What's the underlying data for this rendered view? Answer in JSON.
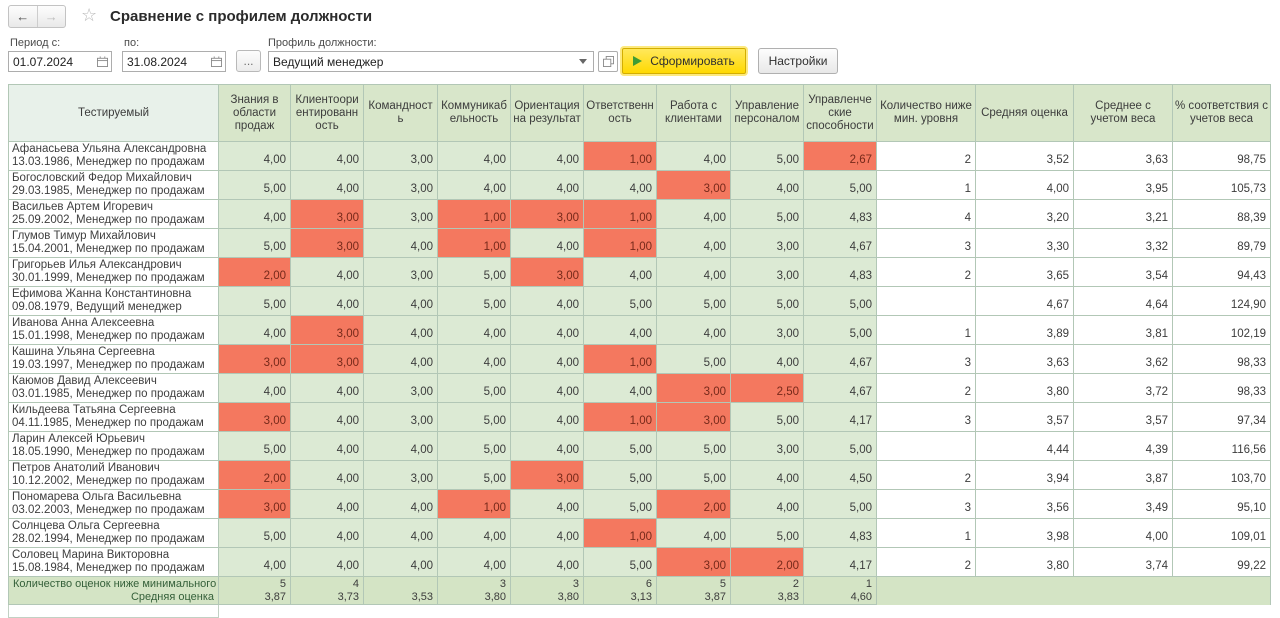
{
  "header": {
    "back_icon": "←",
    "forward_icon": "→",
    "star_icon": "☆",
    "title": "Сравнение с профилем должности"
  },
  "filters": {
    "period_from_label": "Период с:",
    "period_from_value": "01.07.2024",
    "period_to_label": "по:",
    "period_to_value": "31.08.2024",
    "more_button_label": "...",
    "profile_label": "Профиль должности:",
    "profile_value": "Ведущий менеджер",
    "generate_button_label": "Сформировать",
    "settings_button_label": "Настройки"
  },
  "colors": {
    "low_cell": "#f4785f",
    "cell_green": "#dcead4",
    "header_green": "#d8e6ca",
    "summary_green": "#d4e4c5",
    "accent_yellow": "#ffd900"
  },
  "table": {
    "name_header": "Тестируемый",
    "columns": [
      "Знания в области продаж",
      "Клиентоориентированность",
      "Командность",
      "Коммуникабельность",
      "Ориентация на результат",
      "Ответственность",
      "Работа с клиентами",
      "Управление персоналом",
      "Управленческие способности",
      "Количество ниже мин. уровня",
      "Средняя оценка",
      "Среднее с учетом веса",
      "% соответствия с учетов веса"
    ],
    "rows": [
      {
        "name": "Афанасьева Ульяна Александровна",
        "info": "13.03.1986, Менеджер по продажам",
        "scores": [
          "4,00",
          "4,00",
          "3,00",
          "4,00",
          "4,00",
          "1,00",
          "4,00",
          "5,00",
          "2,67"
        ],
        "low": [
          5,
          8
        ],
        "stats": [
          "2",
          "3,52",
          "3,63",
          "98,75"
        ]
      },
      {
        "name": "Богословский Федор Михайлович",
        "info": "29.03.1985, Менеджер по продажам",
        "scores": [
          "5,00",
          "4,00",
          "3,00",
          "4,00",
          "4,00",
          "4,00",
          "3,00",
          "4,00",
          "5,00"
        ],
        "low": [
          6
        ],
        "stats": [
          "1",
          "4,00",
          "3,95",
          "105,73"
        ]
      },
      {
        "name": "Васильев Артем Игоревич",
        "info": "25.09.2002, Менеджер по продажам",
        "scores": [
          "4,00",
          "3,00",
          "3,00",
          "1,00",
          "3,00",
          "1,00",
          "4,00",
          "5,00",
          "4,83"
        ],
        "low": [
          1,
          3,
          4,
          5
        ],
        "stats": [
          "4",
          "3,20",
          "3,21",
          "88,39"
        ]
      },
      {
        "name": "Глумов Тимур Михайлович",
        "info": "15.04.2001, Менеджер по продажам",
        "scores": [
          "5,00",
          "3,00",
          "4,00",
          "1,00",
          "4,00",
          "1,00",
          "4,00",
          "3,00",
          "4,67"
        ],
        "low": [
          1,
          3,
          5
        ],
        "stats": [
          "3",
          "3,30",
          "3,32",
          "89,79"
        ]
      },
      {
        "name": "Григорьев Илья Александрович",
        "info": "30.01.1999, Менеджер по продажам",
        "scores": [
          "2,00",
          "4,00",
          "3,00",
          "5,00",
          "3,00",
          "4,00",
          "4,00",
          "3,00",
          "4,83"
        ],
        "low": [
          0,
          4
        ],
        "stats": [
          "2",
          "3,65",
          "3,54",
          "94,43"
        ]
      },
      {
        "name": "Ефимова Жанна Константиновна",
        "info": "09.08.1979, Ведущий менеджер",
        "scores": [
          "5,00",
          "4,00",
          "4,00",
          "5,00",
          "4,00",
          "5,00",
          "5,00",
          "5,00",
          "5,00"
        ],
        "low": [],
        "stats": [
          "",
          "4,67",
          "4,64",
          "124,90"
        ]
      },
      {
        "name": "Иванова Анна Алексеевна",
        "info": "15.01.1998, Менеджер по продажам",
        "scores": [
          "4,00",
          "3,00",
          "4,00",
          "4,00",
          "4,00",
          "4,00",
          "4,00",
          "3,00",
          "5,00"
        ],
        "low": [
          1
        ],
        "stats": [
          "1",
          "3,89",
          "3,81",
          "102,19"
        ]
      },
      {
        "name": "Кашина Ульяна Сергеевна",
        "info": "19.03.1997, Менеджер по продажам",
        "scores": [
          "3,00",
          "3,00",
          "4,00",
          "4,00",
          "4,00",
          "1,00",
          "5,00",
          "4,00",
          "4,67"
        ],
        "low": [
          0,
          1,
          5
        ],
        "stats": [
          "3",
          "3,63",
          "3,62",
          "98,33"
        ]
      },
      {
        "name": "Каюмов Давид Алексеевич",
        "info": "03.01.1985, Менеджер по продажам",
        "scores": [
          "4,00",
          "4,00",
          "3,00",
          "5,00",
          "4,00",
          "4,00",
          "3,00",
          "2,50",
          "4,67"
        ],
        "low": [
          6,
          7
        ],
        "stats": [
          "2",
          "3,80",
          "3,72",
          "98,33"
        ]
      },
      {
        "name": "Кильдеева Татьяна Сергеевна",
        "info": "04.11.1985, Менеджер по продажам",
        "scores": [
          "3,00",
          "4,00",
          "3,00",
          "5,00",
          "4,00",
          "1,00",
          "3,00",
          "5,00",
          "4,17"
        ],
        "low": [
          0,
          5,
          6
        ],
        "stats": [
          "3",
          "3,57",
          "3,57",
          "97,34"
        ]
      },
      {
        "name": "Ларин Алексей Юрьевич",
        "info": "18.05.1990, Менеджер по продажам",
        "scores": [
          "5,00",
          "4,00",
          "4,00",
          "5,00",
          "4,00",
          "5,00",
          "5,00",
          "3,00",
          "5,00"
        ],
        "low": [],
        "stats": [
          "",
          "4,44",
          "4,39",
          "116,56"
        ]
      },
      {
        "name": "Петров Анатолий Иванович",
        "info": "10.12.2002, Менеджер по продажам",
        "scores": [
          "2,00",
          "4,00",
          "3,00",
          "5,00",
          "3,00",
          "5,00",
          "5,00",
          "4,00",
          "4,50"
        ],
        "low": [
          0,
          4
        ],
        "stats": [
          "2",
          "3,94",
          "3,87",
          "103,70"
        ]
      },
      {
        "name": "Пономарева Ольга Васильевна",
        "info": "03.02.2003, Менеджер по продажам",
        "scores": [
          "3,00",
          "4,00",
          "4,00",
          "1,00",
          "4,00",
          "5,00",
          "2,00",
          "4,00",
          "5,00"
        ],
        "low": [
          0,
          3,
          6
        ],
        "stats": [
          "3",
          "3,56",
          "3,49",
          "95,10"
        ]
      },
      {
        "name": "Солнцева Ольга Сергеевна",
        "info": "28.02.1994, Менеджер по продажам",
        "scores": [
          "5,00",
          "4,00",
          "4,00",
          "4,00",
          "4,00",
          "1,00",
          "4,00",
          "5,00",
          "4,83"
        ],
        "low": [
          5
        ],
        "stats": [
          "1",
          "3,98",
          "4,00",
          "109,01"
        ]
      },
      {
        "name": "Соловец Марина Викторовна",
        "info": "15.08.1984, Менеджер по продажам",
        "scores": [
          "4,00",
          "4,00",
          "4,00",
          "4,00",
          "4,00",
          "5,00",
          "3,00",
          "2,00",
          "4,17"
        ],
        "low": [
          6,
          7
        ],
        "stats": [
          "2",
          "3,80",
          "3,74",
          "99,22"
        ]
      }
    ],
    "summary": {
      "count_label": "Количество оценок ниже минимального уровня",
      "counts": [
        "5",
        "4",
        "",
        "3",
        "3",
        "6",
        "5",
        "2",
        "1"
      ],
      "avg_label": "Средняя оценка",
      "avgs": [
        "3,87",
        "3,73",
        "3,53",
        "3,80",
        "3,80",
        "3,13",
        "3,87",
        "3,83",
        "4,60"
      ]
    }
  }
}
